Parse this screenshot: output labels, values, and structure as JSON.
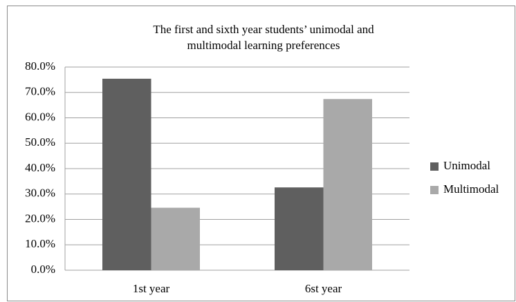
{
  "chart_data": {
    "type": "bar",
    "title": [
      "The first and sixth year students’ unimodal and",
      "multimodal learning preferences"
    ],
    "categories": [
      "1st year",
      "6st year"
    ],
    "series": [
      {
        "name": "Unimodal",
        "color": "#5f5f5f",
        "values": [
          75.4,
          32.6
        ]
      },
      {
        "name": "Multimodal",
        "color": "#a9a9a9",
        "values": [
          24.6,
          67.4
        ]
      }
    ],
    "ylim": [
      0,
      80
    ],
    "yticks": [
      {
        "value": 0,
        "label": "0.0%"
      },
      {
        "value": 10,
        "label": "10.0%"
      },
      {
        "value": 20,
        "label": "20.0%"
      },
      {
        "value": 30,
        "label": "30.0%"
      },
      {
        "value": 40,
        "label": "40.0%"
      },
      {
        "value": 50,
        "label": "50.0%"
      },
      {
        "value": 60,
        "label": "60.0%"
      },
      {
        "value": 70,
        "label": "70.0%"
      },
      {
        "value": 80,
        "label": "80.0%"
      }
    ],
    "grid": true,
    "legend": "right"
  }
}
